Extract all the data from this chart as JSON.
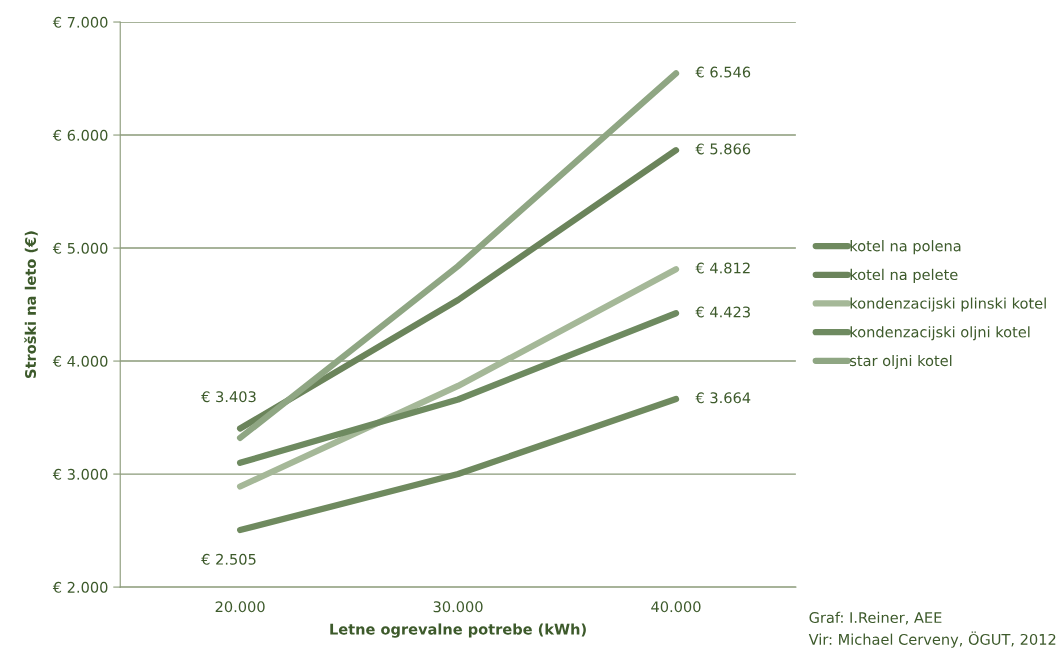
{
  "chart_data": {
    "type": "line",
    "xlabel": "Letne ogrevalne potrebe (kWh)",
    "ylabel": "Stroški na leto (€)",
    "categories": [
      "20.000",
      "30.000",
      "40.000"
    ],
    "series": [
      {
        "name": "kotel na polena",
        "color": "#6f8a5f",
        "values": [
          2505,
          3000,
          3664
        ],
        "value_labels": [
          "€ 2.505",
          null,
          "€ 3.664"
        ]
      },
      {
        "name": "kotel na pelete",
        "color": "#6b845b",
        "values": [
          3403,
          4540,
          5866
        ],
        "value_labels": [
          "€ 3.403",
          null,
          "€ 5.866"
        ]
      },
      {
        "name": "kondenzacijski plinski kotel",
        "color": "#a5b898",
        "values": [
          2890,
          3780,
          4812
        ],
        "value_labels": [
          null,
          null,
          "€ 4.812"
        ]
      },
      {
        "name": "kondenzacijski oljni kotel",
        "color": "#6e8a60",
        "values": [
          3100,
          3660,
          4423
        ],
        "value_labels": [
          null,
          null,
          "€ 4.423"
        ]
      },
      {
        "name": "star oljni kotel",
        "color": "#8fa683",
        "values": [
          3320,
          4840,
          6546
        ],
        "value_labels": [
          null,
          null,
          "€ 6.546"
        ]
      }
    ],
    "ylim": [
      2000,
      7000
    ],
    "yticks": [
      {
        "value": 2000,
        "label": "€ 2.000"
      },
      {
        "value": 3000,
        "label": "€ 3.000"
      },
      {
        "value": 4000,
        "label": "€ 4.000"
      },
      {
        "value": 5000,
        "label": "€ 5.000"
      },
      {
        "value": 6000,
        "label": "€ 6.000"
      },
      {
        "value": 7000,
        "label": "€ 7.000"
      }
    ],
    "grid": "y",
    "legend": "right",
    "marker": "none",
    "line_style": "solid",
    "annotations": [
      "Graf: I.Reiner, AEE",
      "Vir: Michael Cerveny, ÖGUT, 2012"
    ]
  }
}
